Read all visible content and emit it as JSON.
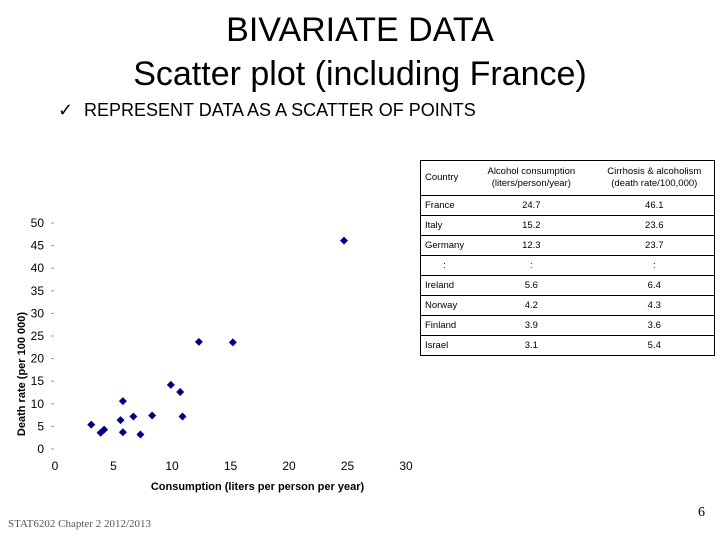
{
  "slide": {
    "title_line1": "BIVARIATE DATA",
    "title_line2": "Scatter plot (including France)",
    "bullet_icon": "checkmark-icon",
    "bullet_text": "REPRESENT DATA AS A SCATTER OF POINTS",
    "footer": "STAT6202 Chapter 2 2012/2013",
    "page_number": "6"
  },
  "table": {
    "headers": [
      "Country",
      "Alcohol consumption (liters/person/year)",
      "Cirrhosis & alcoholism (death rate/100,000)"
    ],
    "rows": [
      [
        "France",
        "24.7",
        "46.1"
      ],
      [
        "Italy",
        "15.2",
        "23.6"
      ],
      [
        "Germany",
        "12.3",
        "23.7"
      ],
      [
        ":",
        ":",
        ":"
      ],
      [
        "Ireland",
        "5.6",
        "6.4"
      ],
      [
        "Norway",
        "4.2",
        "4.3"
      ],
      [
        "Finland",
        "3.9",
        "3.6"
      ],
      [
        "Israel",
        "3.1",
        "5.4"
      ]
    ]
  },
  "chart_data": {
    "type": "scatter",
    "title": "",
    "xlabel": "Consumption (liters per person per year)",
    "ylabel": "Death rate (per 100 000)",
    "xlim": [
      0,
      30
    ],
    "ylim": [
      0,
      50
    ],
    "xticks": [
      "0",
      "5",
      "10",
      "15",
      "20",
      "25",
      "30"
    ],
    "yticks": [
      "0",
      "5",
      "10",
      "15",
      "20",
      "25",
      "30",
      "35",
      "40",
      "45",
      "50"
    ],
    "grid": false,
    "marker_color": "#000080",
    "points": [
      {
        "x": 24.7,
        "y": 46.1
      },
      {
        "x": 15.2,
        "y": 23.6
      },
      {
        "x": 12.3,
        "y": 23.7
      },
      {
        "x": 9.9,
        "y": 14.2
      },
      {
        "x": 10.7,
        "y": 12.6
      },
      {
        "x": 10.9,
        "y": 7.2
      },
      {
        "x": 8.3,
        "y": 7.4
      },
      {
        "x": 6.7,
        "y": 7.2
      },
      {
        "x": 5.8,
        "y": 10.6
      },
      {
        "x": 5.6,
        "y": 6.4
      },
      {
        "x": 5.8,
        "y": 3.7
      },
      {
        "x": 7.3,
        "y": 3.2
      },
      {
        "x": 4.2,
        "y": 4.3
      },
      {
        "x": 3.9,
        "y": 3.6
      },
      {
        "x": 3.1,
        "y": 5.4
      }
    ]
  }
}
